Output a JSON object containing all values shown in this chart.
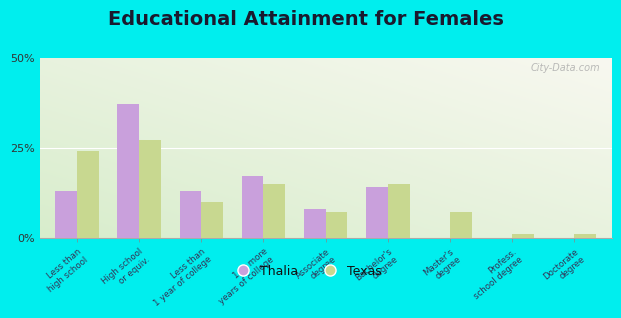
{
  "title": "Educational Attainment for Females",
  "categories": [
    "Less than\nhigh school",
    "High school\nor equiv.",
    "Less than\n1 year of college",
    "1 or more\nyears of college",
    "Associate\ndegree",
    "Bachelor's\ndegree",
    "Master's\ndegree",
    "Profess.\nschool degree",
    "Doctorate\ndegree"
  ],
  "thalia_values": [
    13,
    37,
    13,
    17,
    8,
    14,
    0,
    0,
    0
  ],
  "texas_values": [
    24,
    27,
    10,
    15,
    7,
    15,
    7,
    1,
    1
  ],
  "thalia_color": "#c9a0dc",
  "texas_color": "#c8d890",
  "background_color": "#00eeee",
  "ylim": [
    0,
    50
  ],
  "yticks": [
    0,
    25,
    50
  ],
  "ytick_labels": [
    "0%",
    "25%",
    "50%"
  ],
  "legend_labels": [
    "Thalia",
    "Texas"
  ],
  "bar_width": 0.35,
  "title_fontsize": 14,
  "title_color": "#1a1a2e"
}
